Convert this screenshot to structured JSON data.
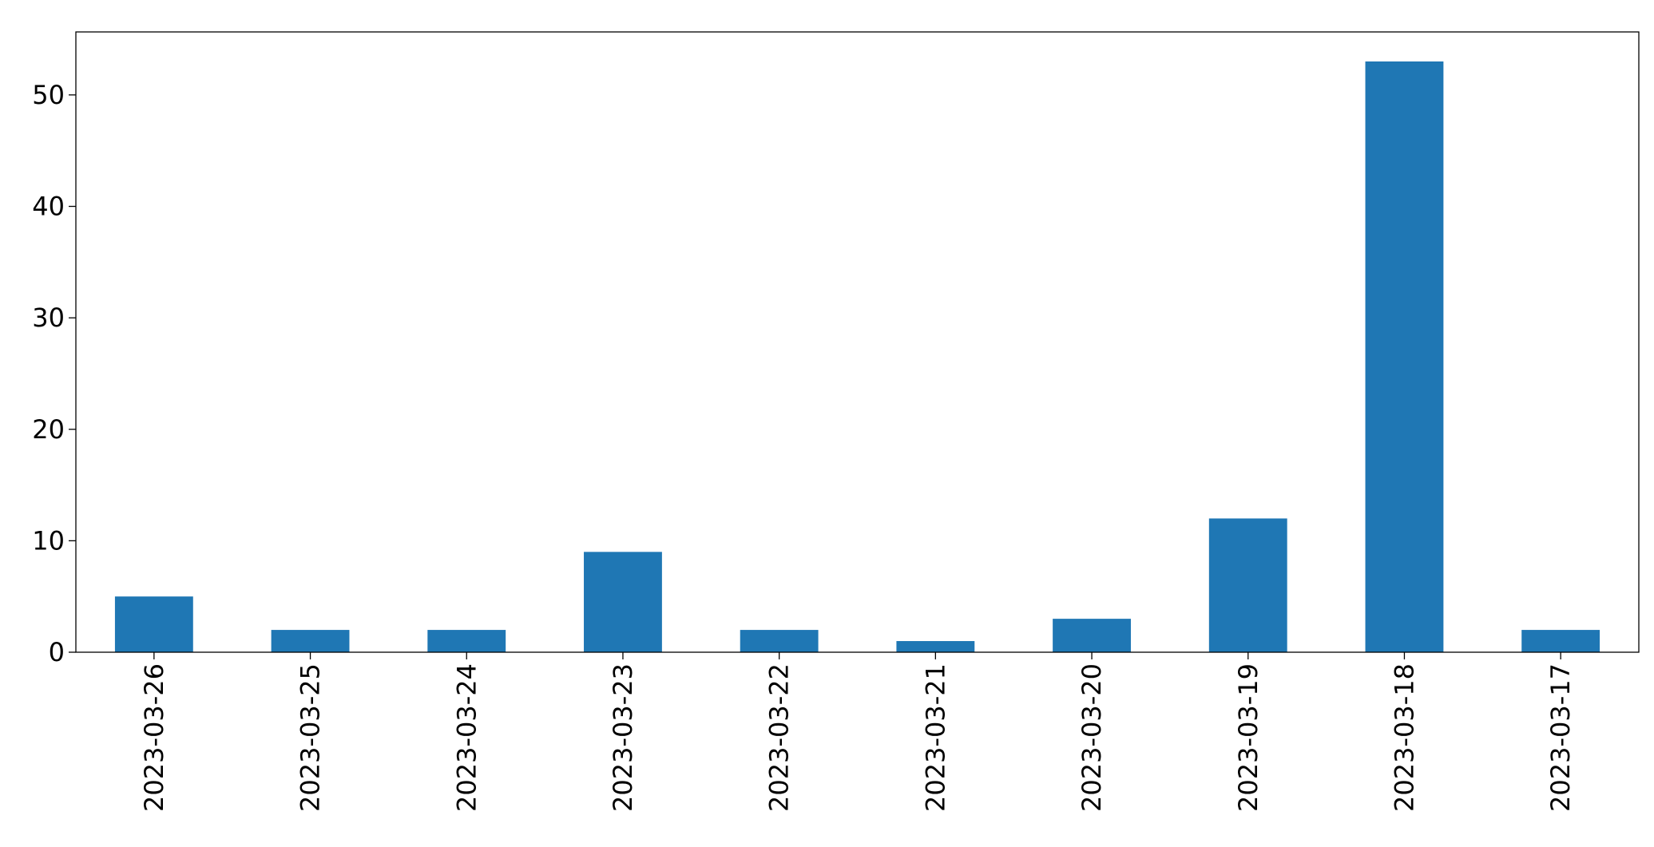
{
  "chart_data": {
    "type": "bar",
    "categories": [
      "2023-03-26",
      "2023-03-25",
      "2023-03-24",
      "2023-03-23",
      "2023-03-22",
      "2023-03-21",
      "2023-03-20",
      "2023-03-19",
      "2023-03-18",
      "2023-03-17"
    ],
    "values": [
      5,
      2,
      2,
      9,
      2,
      1,
      3,
      12,
      53,
      2
    ],
    "color": "#1f77b4",
    "ylim": [
      0,
      55.65
    ],
    "yticks": [
      0,
      10,
      20,
      30,
      40,
      50
    ],
    "grid": false
  }
}
